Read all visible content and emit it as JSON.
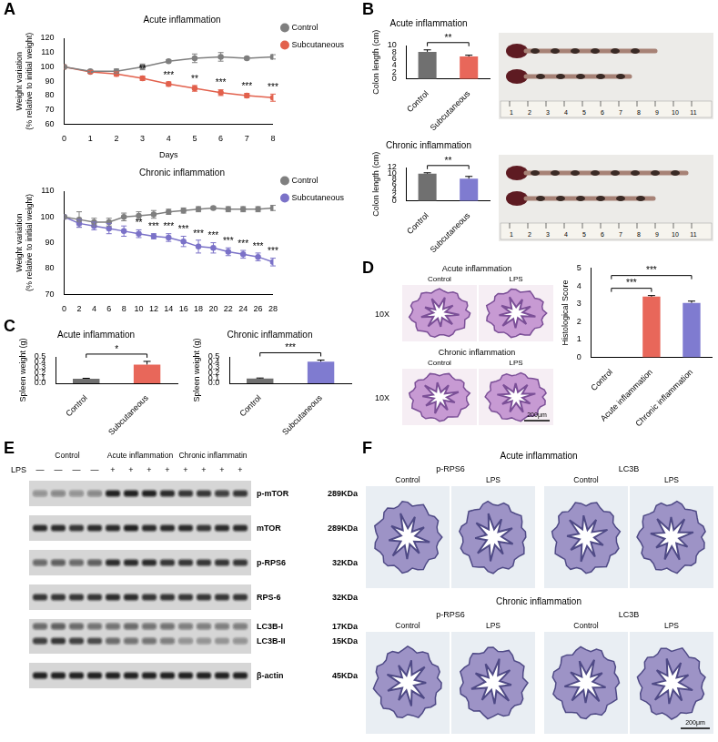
{
  "chart_data": [
    {
      "type": "line",
      "title": "Acute inflammation",
      "xlabel": "Days",
      "ylabel": [
        "Weight variation",
        "(% relative to initial weight)"
      ],
      "x": [
        0,
        1,
        2,
        3,
        4,
        5,
        6,
        7,
        8
      ],
      "xlim": [
        0,
        8
      ],
      "xticks": [
        0,
        1,
        2,
        3,
        4,
        5,
        6,
        7,
        8
      ],
      "ylim": [
        60,
        120
      ],
      "yticks": [
        60,
        70,
        80,
        90,
        100,
        110,
        120
      ],
      "grid": false,
      "legend": "right",
      "series": [
        {
          "name": "Control",
          "color": "#7f7f7f",
          "marker": "circle",
          "values": [
            100,
            97,
            97,
            100,
            104,
            106,
            107,
            106,
            107
          ],
          "errors": [
            0,
            1,
            1.5,
            2,
            1,
            3,
            3,
            1,
            1.5
          ]
        },
        {
          "name": "Subcutaneous",
          "color": "#e2614d",
          "marker": "circle",
          "values": [
            100,
            96.5,
            95,
            92,
            88,
            85,
            82,
            80,
            78.5
          ],
          "errors": [
            0,
            1,
            1.5,
            1.5,
            1.5,
            2,
            2,
            1.5,
            2.5
          ],
          "significance": [
            null,
            null,
            null,
            "**",
            "***",
            "**",
            "***",
            "***",
            "***"
          ]
        }
      ]
    },
    {
      "type": "line",
      "title": "Chronic inflammation",
      "ylabel": [
        "Weight variation",
        "(% relative to initial weight)"
      ],
      "x": [
        0,
        2,
        4,
        6,
        8,
        10,
        12,
        14,
        16,
        18,
        20,
        22,
        24,
        26,
        28
      ],
      "xlim": [
        0,
        28
      ],
      "xticks": [
        0,
        2,
        4,
        6,
        8,
        10,
        12,
        14,
        16,
        18,
        20,
        22,
        24,
        26,
        28
      ],
      "ylim": [
        70,
        110
      ],
      "yticks": [
        70,
        80,
        90,
        100,
        110
      ],
      "grid": false,
      "legend": "right",
      "series": [
        {
          "name": "Control",
          "color": "#7f7f7f",
          "marker": "circle",
          "values": [
            100,
            99,
            98,
            98,
            100,
            100.5,
            101,
            102,
            102.5,
            103,
            103.5,
            103,
            103,
            103,
            103.5
          ],
          "errors": [
            0,
            3,
            1.5,
            1.5,
            1.5,
            1.5,
            1.5,
            1,
            1,
            1,
            0.5,
            1,
            1,
            1,
            1
          ]
        },
        {
          "name": "Subcutaneous",
          "color": "#7b72c8",
          "marker": "circle",
          "values": [
            100,
            97.5,
            96.5,
            95.5,
            94.5,
            93.5,
            92.5,
            92,
            90.5,
            88.5,
            88,
            86.5,
            85.5,
            84.5,
            82.5
          ],
          "errors": [
            0,
            1.5,
            1.5,
            2,
            2,
            1.5,
            1,
            1.5,
            2,
            2.5,
            2,
            1.5,
            1.5,
            1.5,
            1.5
          ],
          "significance": [
            null,
            null,
            null,
            null,
            null,
            "**",
            "***",
            "***",
            "***",
            "***",
            "***",
            "***",
            "***",
            "***",
            "***"
          ]
        }
      ]
    },
    {
      "type": "bar",
      "title": "Acute inflammation",
      "ylabel": "Colon length (cm)",
      "categories": [
        "Control",
        "Subcutaneous"
      ],
      "values": [
        8.1,
        6.7
      ],
      "errors": [
        0.6,
        0.4
      ],
      "colors": [
        "#707070",
        "#e8675a"
      ],
      "ylim": [
        0,
        10
      ],
      "yticks": [
        0,
        2,
        4,
        6,
        8,
        10
      ],
      "grid": false,
      "significance": [
        {
          "pair": [
            "Control",
            "Subcutaneous"
          ],
          "label": "**"
        }
      ]
    },
    {
      "type": "bar",
      "title": "Chronic inflammation",
      "ylabel": "Colon length (cm)",
      "categories": [
        "Control",
        "Subcutaneous"
      ],
      "values": [
        9.8,
        8.0
      ],
      "errors": [
        0.3,
        0.8
      ],
      "colors": [
        "#707070",
        "#7f7bd0"
      ],
      "ylim": [
        0,
        12
      ],
      "yticks": [
        0,
        2,
        4,
        6,
        8,
        10,
        12
      ],
      "grid": false,
      "significance": [
        {
          "pair": [
            "Control",
            "Subcutaneous"
          ],
          "label": "**"
        }
      ]
    },
    {
      "type": "bar",
      "title": "Acute inflammation",
      "ylabel": "Spleen weight (g)",
      "categories": [
        "Control",
        "Subcutaneous"
      ],
      "values": [
        0.085,
        0.355
      ],
      "errors": [
        0.01,
        0.06
      ],
      "colors": [
        "#707070",
        "#e8675a"
      ],
      "ylim": [
        0,
        0.5
      ],
      "yticks": [
        {
          "value": 0,
          "label": "0.0"
        },
        0.1,
        0.2,
        0.3,
        0.4,
        0.5
      ],
      "grid": false,
      "significance": [
        {
          "pair": [
            "Control",
            "Subcutaneous"
          ],
          "label": "*"
        }
      ]
    },
    {
      "type": "bar",
      "title": "Chronic inflammation",
      "ylabel": "Spleen weight (g)",
      "categories": [
        "Control",
        "Subcutaneous"
      ],
      "values": [
        0.09,
        0.41
      ],
      "errors": [
        0.01,
        0.03
      ],
      "colors": [
        "#707070",
        "#7f7bd0"
      ],
      "ylim": [
        0,
        0.5
      ],
      "yticks": [
        {
          "value": 0,
          "label": "0.0"
        },
        0.1,
        0.2,
        0.3,
        0.4,
        0.5
      ],
      "grid": false,
      "significance": [
        {
          "pair": [
            "Control",
            "Subcutaneous"
          ],
          "label": "***"
        }
      ]
    },
    {
      "type": "bar",
      "ylabel": "Histological Score",
      "categories": [
        "Control",
        "Acute inflammation",
        "Chronic inflammation"
      ],
      "values": [
        0,
        3.4,
        3.05
      ],
      "errors": [
        0,
        0.06,
        0.1
      ],
      "colors": [
        "#707070",
        "#e8675a",
        "#7f7bd0"
      ],
      "ylim": [
        0,
        5
      ],
      "yticks": [
        0,
        1,
        2,
        3,
        4,
        5
      ],
      "grid": false,
      "significance": [
        {
          "pair": [
            "Control",
            "Acute inflammation"
          ],
          "label": "***"
        },
        {
          "pair": [
            "Control",
            "Chronic inflammation"
          ],
          "label": "***"
        }
      ]
    }
  ],
  "figure": {
    "panel_labels": [
      "A",
      "B",
      "C",
      "D",
      "E",
      "F"
    ],
    "colon_photos": {
      "ruler": [
        1,
        2,
        3,
        4,
        5,
        6,
        7,
        8,
        9,
        10,
        11
      ]
    },
    "histology": {
      "magnification": "10X",
      "scale_bar": "200μm",
      "rows": [
        {
          "title": "Acute inflammation",
          "columns": [
            "Control",
            "LPS"
          ]
        },
        {
          "title": "Chronic inflammation",
          "columns": [
            "Control",
            "LPS"
          ]
        }
      ]
    },
    "western_blot": {
      "groups": [
        "Control",
        "Acute inflammation",
        "Chronic inflammatin"
      ],
      "treatment": {
        "label": "LPS",
        "marks": [
          "—",
          "—",
          "—",
          "—",
          "+",
          "+",
          "+",
          "+",
          "+",
          "+",
          "+",
          "+"
        ]
      },
      "rows": [
        {
          "bands": [
            {
              "name": "p-mTOR",
              "size": "289KDa",
              "intensity": [
                0.35,
                0.4,
                0.35,
                0.4,
                0.9,
                0.9,
                0.9,
                0.85,
                0.8,
                0.8,
                0.75,
                0.8
              ]
            }
          ]
        },
        {
          "bands": [
            {
              "name": "mTOR",
              "size": "289KDa",
              "intensity": [
                0.85,
                0.85,
                0.8,
                0.85,
                0.85,
                0.9,
                0.85,
                0.85,
                0.85,
                0.8,
                0.85,
                0.85
              ]
            }
          ]
        },
        {
          "bands": [
            {
              "name": "p-RPS6",
              "size": "32KDa",
              "intensity": [
                0.55,
                0.6,
                0.55,
                0.6,
                0.85,
                0.85,
                0.85,
                0.8,
                0.8,
                0.8,
                0.8,
                0.8
              ]
            }
          ]
        },
        {
          "bands": [
            {
              "name": "RPS-6",
              "size": "32KDa",
              "intensity": [
                0.8,
                0.8,
                0.8,
                0.8,
                0.85,
                0.85,
                0.8,
                0.8,
                0.8,
                0.8,
                0.8,
                0.8
              ]
            }
          ]
        },
        {
          "bands": [
            {
              "name": "LC3B-I",
              "size": "17KDa",
              "intensity": [
                0.55,
                0.6,
                0.55,
                0.5,
                0.5,
                0.55,
                0.5,
                0.5,
                0.45,
                0.45,
                0.45,
                0.45
              ]
            },
            {
              "name": "LC3B-II",
              "size": "15KDa",
              "intensity": [
                0.75,
                0.8,
                0.75,
                0.7,
                0.55,
                0.5,
                0.5,
                0.45,
                0.35,
                0.35,
                0.3,
                0.35
              ]
            }
          ]
        },
        {
          "bands": [
            {
              "name": "β-actin",
              "size": "45KDa",
              "intensity": [
                0.9,
                0.9,
                0.9,
                0.9,
                0.9,
                0.9,
                0.9,
                0.9,
                0.9,
                0.9,
                0.9,
                0.9
              ]
            }
          ]
        }
      ]
    },
    "ihc": {
      "scale_bar": "200μm",
      "rows": [
        {
          "title": "Acute inflammation",
          "groups": [
            {
              "marker": "p-RPS6",
              "columns": [
                "Control",
                "LPS"
              ]
            },
            {
              "marker": "LC3B",
              "columns": [
                "Control",
                "LPS"
              ]
            }
          ]
        },
        {
          "title": "Chronic inflammation",
          "groups": [
            {
              "marker": "p-RPS6",
              "columns": [
                "Control",
                "LPS"
              ]
            },
            {
              "marker": "LC3B",
              "columns": [
                "Control",
                "LPS"
              ]
            }
          ]
        }
      ]
    }
  }
}
